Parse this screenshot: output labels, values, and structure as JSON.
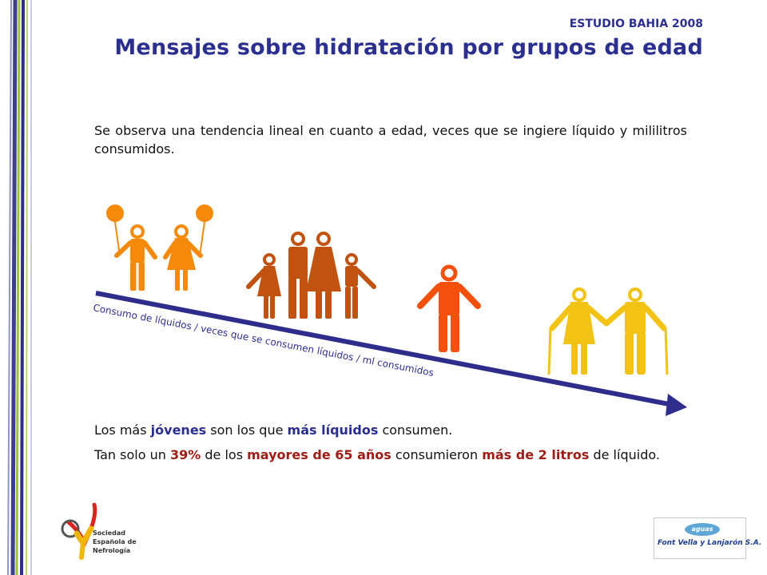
{
  "header": {
    "study": "ESTUDIO BAHIA 2008",
    "title": "Mensajes sobre hidratación por grupos de edad"
  },
  "intro": "Se observa una tendencia lineal en cuanto a edad, veces que se ingiere líquido y mililitros consumidos.",
  "illustration": {
    "arrow_label": "Consumo de líquidos / veces que se consumen líquidos / ml consumidos",
    "colors": {
      "children": "#f58a0a",
      "family": "#c2520f",
      "adult": "#f2500b",
      "elderly": "#f2c312",
      "arrow": "#2e2d8c"
    }
  },
  "conclusions": {
    "line1": {
      "a": "Los más",
      "b": "jóvenes",
      "c": "son los que",
      "d": "más líquidos",
      "e": "consumen."
    },
    "line2": {
      "a": "Tan solo un",
      "b": "39%",
      "c": "de los",
      "d": "mayores de 65 años",
      "e": "consumieron",
      "f": "más de 2 litros",
      "g": "de líquido."
    }
  },
  "logos": {
    "sen_lines": [
      "Sociedad",
      "Española de",
      "Nefrología"
    ],
    "fv_badge": "aguas",
    "fv_name": "Font Vella y Lanjarón S.A."
  }
}
